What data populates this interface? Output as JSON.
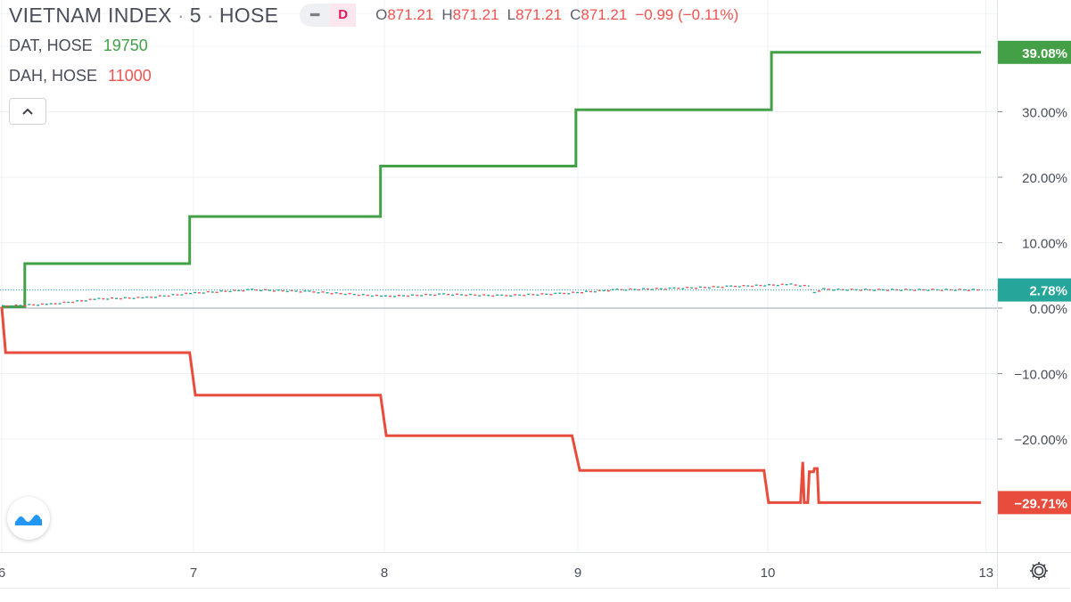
{
  "legend": {
    "title": "VIETNAM INDEX",
    "interval": "5",
    "exchange": "HOSE",
    "flag": "D",
    "ohlc": [
      {
        "label": "O",
        "value": "871.21"
      },
      {
        "label": "H",
        "value": "871.21"
      },
      {
        "label": "L",
        "value": "871.21"
      },
      {
        "label": "C",
        "value": "871.21"
      }
    ],
    "change": "−0.99 (−0.11%)",
    "compare": [
      {
        "symbol": "DAT, HOSE",
        "value": "19750",
        "color": "#43a047"
      },
      {
        "symbol": "DAH, HOSE",
        "value": "11000",
        "color": "#ef5350"
      }
    ]
  },
  "icons": {
    "collapse": "chevron-up-icon",
    "logo": "tradingview-logo-icon",
    "settings": "gear-icon"
  },
  "chart_data": {
    "type": "line",
    "ylabel": "",
    "xlabel": "",
    "ylim": [
      -37,
      46.5
    ],
    "xlim": [
      6,
      13.15
    ],
    "y_ticks": [
      "30.00%",
      "20.00%",
      "10.00%",
      "0.00%",
      "−10.00%",
      "−20.00%"
    ],
    "y_tick_values": [
      30,
      20,
      10,
      0,
      -10,
      -20
    ],
    "x_ticks": [
      "6",
      "7",
      "8",
      "9",
      "10",
      "13"
    ],
    "x_tick_values": [
      6,
      7,
      8,
      9,
      10,
      13
    ],
    "grid": true,
    "series": [
      {
        "name": "DAT, HOSE",
        "color": "#43a047",
        "style": "step",
        "last_label": "39.08%",
        "x": [
          6,
          6.12,
          6.12,
          6.98,
          6.98,
          7.98,
          7.98,
          8.99,
          8.99,
          10.05,
          10.05,
          12.93
        ],
        "y": [
          0.2,
          0.2,
          6.8,
          6.8,
          14.0,
          14.0,
          21.7,
          21.7,
          30.3,
          30.3,
          39.08,
          39.08
        ]
      },
      {
        "name": "DAH, HOSE",
        "color": "#e74c3c",
        "style": "step",
        "last_label": "−29.71%",
        "x": [
          6,
          6.02,
          6.98,
          7.01,
          7.98,
          8.01,
          8.97,
          9.01,
          9.98,
          10.01,
          10.45,
          10.48,
          10.5,
          10.55,
          10.57,
          10.63,
          10.64,
          10.68,
          10.7,
          12.93
        ],
        "y": [
          0.2,
          -6.8,
          -6.8,
          -13.3,
          -13.3,
          -19.5,
          -19.5,
          -24.8,
          -24.8,
          -29.71,
          -29.71,
          -23.5,
          -29.71,
          -29.71,
          -25.0,
          -25.0,
          -24.5,
          -24.5,
          -29.71,
          -29.71
        ]
      },
      {
        "name": "VIETNAM INDEX",
        "color": "#26a69a",
        "style": "candles",
        "last_label": "2.78%",
        "x": [
          6,
          6.25,
          6.5,
          6.75,
          7,
          7.3,
          7.6,
          8.0,
          8.3,
          8.6,
          8.9,
          9.2,
          9.5,
          9.8,
          10.0,
          10.3,
          10.55,
          10.62,
          10.75,
          10.95,
          12.93
        ],
        "y": [
          0.3,
          0.6,
          1.4,
          1.6,
          2.3,
          2.8,
          2.5,
          1.8,
          2.1,
          1.9,
          2.2,
          2.8,
          3.0,
          3.3,
          3.5,
          3.6,
          3.3,
          2.3,
          2.9,
          2.8,
          2.78
        ]
      }
    ],
    "baseline": 0
  }
}
